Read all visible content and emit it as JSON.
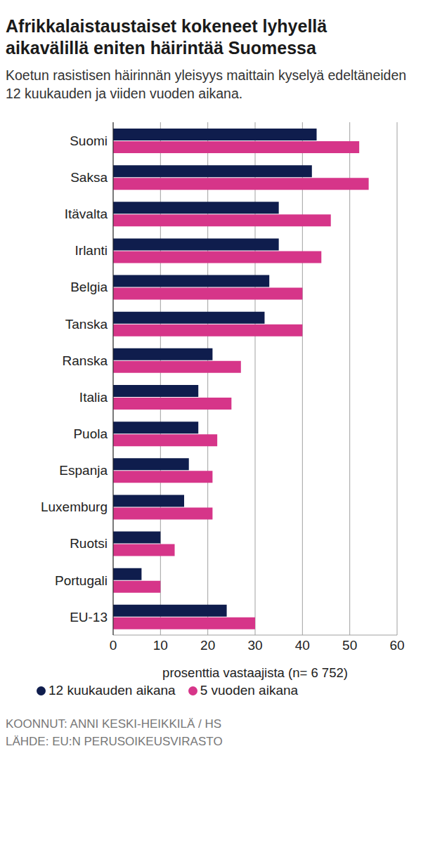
{
  "chart_data": {
    "type": "bar",
    "title": "Afrikkalaistaustaiset kokeneet lyhyellä aikavälillä eniten häirintää Suomessa",
    "subtitle": "Koetun rasistisen häirinnän yleisyys maittain kyselyä edeltäneiden 12 kuukauden ja viiden vuoden aikana.",
    "x_label": "prosenttia vastaajista (n= 6 752)",
    "orientation": "horizontal",
    "categories": [
      "Suomi",
      "Saksa",
      "Itävalta",
      "Irlanti",
      "Belgia",
      "Tanska",
      "Ranska",
      "Italia",
      "Puola",
      "Espanja",
      "Luxemburg",
      "Ruotsi",
      "Portugali",
      "EU-13"
    ],
    "series": [
      {
        "name": "12 kuukauden aikana",
        "color": "#0f1d4d",
        "values": [
          43,
          42,
          35,
          35,
          33,
          32,
          21,
          18,
          18,
          16,
          15,
          10,
          6,
          24
        ]
      },
      {
        "name": "5 vuoden aikana",
        "color": "#d63589",
        "values": [
          52,
          54,
          46,
          44,
          40,
          40,
          27,
          25,
          22,
          21,
          21,
          13,
          10,
          30
        ]
      }
    ],
    "xlim": [
      0,
      60
    ],
    "xticks": [
      0,
      10,
      20,
      30,
      40,
      50,
      60
    ],
    "grid": true,
    "legend": "bottom",
    "annotations": [
      "KOONNUT: ANNI KESKI-HEIKKILÄ / HS",
      "LÄHDE: EU:N PERUSOIKEUSVIRASTO"
    ]
  }
}
